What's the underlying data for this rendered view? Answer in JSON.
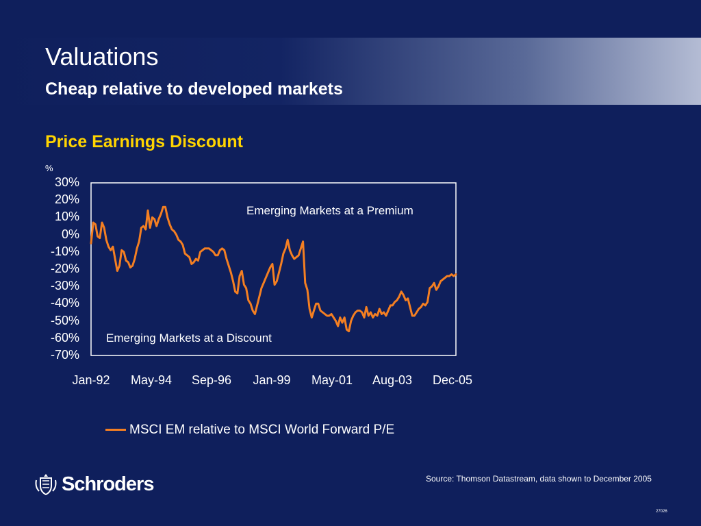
{
  "slide": {
    "title": "Valuations",
    "subtitle": "Cheap relative to developed markets",
    "source": "Source: Thomson Datastream, data shown to December 2005",
    "doc_code": "27026",
    "logo": {
      "name": "Schroders"
    }
  },
  "chart_data": {
    "type": "line",
    "title": "Price Earnings Discount",
    "ylabel": "%",
    "ylim": [
      -70,
      30
    ],
    "yticks": [
      "30%",
      "20%",
      "10%",
      "0%",
      "-10%",
      "-20%",
      "-30%",
      "-40%",
      "-50%",
      "-60%",
      "-70%"
    ],
    "xticks": [
      "Jan-92",
      "May-94",
      "Sep-96",
      "Jan-99",
      "May-01",
      "Aug-03",
      "Dec-05"
    ],
    "xlim": [
      "1992-01",
      "2005-12"
    ],
    "grid": false,
    "legend_position": "bottom",
    "annotations": [
      "Emerging Markets at a Premium",
      "Emerging Markets at a Discount"
    ],
    "series": [
      {
        "name": "MSCI EM relative to MSCI World Forward P/E",
        "color": "#f47f22",
        "x": [
          "1992-01",
          "1992-02",
          "1992-03",
          "1992-04",
          "1992-05",
          "1992-06",
          "1992-07",
          "1992-08",
          "1992-09",
          "1992-10",
          "1992-11",
          "1992-12",
          "1993-01",
          "1993-02",
          "1993-03",
          "1993-04",
          "1993-05",
          "1993-06",
          "1993-07",
          "1993-08",
          "1993-09",
          "1993-10",
          "1993-11",
          "1993-12",
          "1994-01",
          "1994-02",
          "1994-03",
          "1994-04",
          "1994-05",
          "1994-06",
          "1994-07",
          "1994-08",
          "1994-09",
          "1994-10",
          "1994-11",
          "1994-12",
          "1995-01",
          "1995-02",
          "1995-03",
          "1995-04",
          "1995-05",
          "1995-06",
          "1995-07",
          "1995-08",
          "1995-09",
          "1995-10",
          "1995-11",
          "1995-12",
          "1996-01",
          "1996-02",
          "1996-03",
          "1996-04",
          "1996-05",
          "1996-06",
          "1996-07",
          "1996-08",
          "1996-09",
          "1996-10",
          "1996-11",
          "1996-12",
          "1997-01",
          "1997-02",
          "1997-03",
          "1997-04",
          "1997-05",
          "1997-06",
          "1997-07",
          "1997-08",
          "1997-09",
          "1997-10",
          "1997-11",
          "1997-12",
          "1998-01",
          "1998-02",
          "1998-03",
          "1998-04",
          "1998-05",
          "1998-06",
          "1998-07",
          "1998-08",
          "1998-09",
          "1998-10",
          "1998-11",
          "1998-12",
          "1999-01",
          "1999-02",
          "1999-03",
          "1999-04",
          "1999-05",
          "1999-06",
          "1999-07",
          "1999-08",
          "1999-09",
          "1999-10",
          "1999-11",
          "1999-12",
          "2000-01",
          "2000-02",
          "2000-03",
          "2000-04",
          "2000-05",
          "2000-06",
          "2000-07",
          "2000-08",
          "2000-09",
          "2000-10",
          "2000-11",
          "2000-12",
          "2001-01",
          "2001-02",
          "2001-03",
          "2001-04",
          "2001-05",
          "2001-06",
          "2001-07",
          "2001-08",
          "2001-09",
          "2001-10",
          "2001-11",
          "2001-12",
          "2002-01",
          "2002-02",
          "2002-03",
          "2002-04",
          "2002-05",
          "2002-06",
          "2002-07",
          "2002-08",
          "2002-09",
          "2002-10",
          "2002-11",
          "2002-12",
          "2003-01",
          "2003-02",
          "2003-03",
          "2003-04",
          "2003-05",
          "2003-06",
          "2003-07",
          "2003-08",
          "2003-09",
          "2003-10",
          "2003-11",
          "2003-12",
          "2004-01",
          "2004-02",
          "2004-03",
          "2004-04",
          "2004-05",
          "2004-06",
          "2004-07",
          "2004-08",
          "2004-09",
          "2004-10",
          "2004-11",
          "2004-12",
          "2005-01",
          "2005-02",
          "2005-03",
          "2005-04",
          "2005-05",
          "2005-06",
          "2005-07",
          "2005-08",
          "2005-09",
          "2005-10",
          "2005-11",
          "2005-12"
        ],
        "values": [
          -5,
          7,
          6,
          -1,
          -2,
          7,
          4,
          -3,
          -7,
          -9,
          -7,
          -14,
          -21,
          -18,
          -9,
          -10,
          -15,
          -16,
          -19,
          -18,
          -14,
          -8,
          -4,
          4,
          5,
          3,
          14,
          4,
          10,
          9,
          5,
          9,
          12,
          16,
          16,
          10,
          6,
          3,
          2,
          0,
          -3,
          -4,
          -6,
          -11,
          -12,
          -13,
          -17,
          -16,
          -14,
          -15,
          -10,
          -9,
          -8,
          -8,
          -8,
          -9,
          -10,
          -12,
          -12,
          -9,
          -8,
          -9,
          -14,
          -18,
          -22,
          -27,
          -33,
          -34,
          -24,
          -21,
          -29,
          -31,
          -38,
          -40,
          -44,
          -46,
          -41,
          -36,
          -31,
          -28,
          -25,
          -22,
          -19,
          -17,
          -29,
          -27,
          -22,
          -17,
          -11,
          -8,
          -3,
          -9,
          -12,
          -14,
          -13,
          -12,
          -8,
          -4,
          -28,
          -32,
          -43,
          -48,
          -44,
          -40,
          -40,
          -44,
          -45,
          -46,
          -47,
          -47,
          -46,
          -48,
          -50,
          -53,
          -48,
          -51,
          -48,
          -55,
          -56,
          -50,
          -47,
          -45,
          -44,
          -44,
          -45,
          -48,
          -42,
          -47,
          -45,
          -48,
          -46,
          -47,
          -43,
          -46,
          -45,
          -47,
          -44,
          -41,
          -41,
          -39,
          -38,
          -36,
          -33,
          -35,
          -38,
          -37,
          -42,
          -47,
          -47,
          -45,
          -43,
          -42,
          -40,
          -41,
          -39,
          -31,
          -30,
          -28,
          -32,
          -30,
          -27,
          -26,
          -25,
          -24,
          -24,
          -23,
          -24,
          -23
        ]
      }
    ]
  }
}
